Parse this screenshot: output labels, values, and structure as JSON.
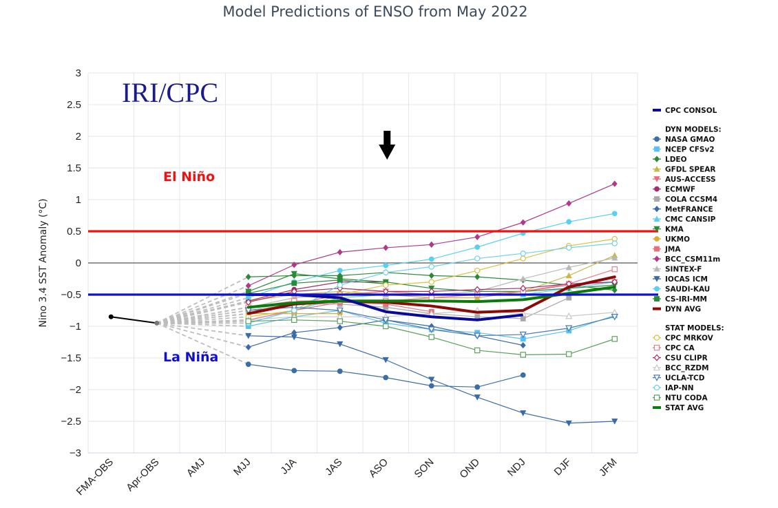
{
  "colors": {
    "el_nino": "#ee1111",
    "la_nina": "#1010cc",
    "brand": "#1a1a8c"
  },
  "chart_data": {
    "type": "line",
    "title": "Model Predictions of ENSO from May 2022",
    "ylabel": "Nino 3.4 SST Anomaly (°C)",
    "brand": "IRI/CPC",
    "annotations": {
      "el_nino": "El Niño",
      "la_nina": "La Niña",
      "arrow_at": "ASO"
    },
    "thresholds": [
      0.5,
      -0.5
    ],
    "ylim": [
      -3,
      3
    ],
    "yticks": [
      3,
      2.5,
      2,
      1.5,
      1,
      0.5,
      0,
      -0.5,
      -1,
      -1.5,
      -2,
      -2.5,
      -3
    ],
    "ytick_labels": [
      "3",
      "2.5",
      "2",
      "1.5",
      "1",
      "0.5",
      "0",
      "−0.5",
      "−1",
      "−1.5",
      "−2",
      "−2.5",
      "−3"
    ],
    "categories": [
      "FMA-OBS",
      "Apr-OBS",
      "AMJ",
      "MJJ",
      "JJA",
      "JAS",
      "ASO",
      "SON",
      "OND",
      "NDJ",
      "DJF",
      "JFM"
    ],
    "observed": {
      "values": [
        -0.85,
        -0.95,
        null,
        null,
        null,
        null,
        null,
        null,
        null,
        null,
        null,
        null
      ]
    },
    "legend": {
      "consol_label": "CPC CONSOL",
      "dyn_header": "DYN MODELS:",
      "stat_header": "STAT MODELS:"
    },
    "series": [
      {
        "name": "CPC CONSOL",
        "group": "consol",
        "color": "#0a0a9a",
        "marker": "none",
        "width": 4,
        "values": [
          null,
          null,
          null,
          -0.5,
          -0.5,
          -0.55,
          -0.77,
          -0.85,
          -0.9,
          -0.82,
          null,
          null
        ]
      },
      {
        "name": "NASA GMAO",
        "group": "dyn",
        "color": "#3b6ea5",
        "marker": "circle",
        "values": [
          null,
          null,
          null,
          -1.6,
          -1.7,
          -1.71,
          -1.81,
          -1.94,
          -1.96,
          -1.77,
          null,
          null
        ]
      },
      {
        "name": "NCEP CFSv2",
        "group": "dyn",
        "color": "#5bc0f0",
        "marker": "square",
        "values": [
          null,
          null,
          null,
          -1.0,
          -0.85,
          -0.75,
          -0.95,
          -1.05,
          -1.1,
          -1.2,
          -1.07,
          -0.83
        ]
      },
      {
        "name": "LDEO",
        "group": "dyn",
        "color": "#2a8a3a",
        "marker": "diamond",
        "values": [
          null,
          null,
          null,
          -0.22,
          -0.2,
          -0.2,
          -0.15,
          -0.2,
          -0.22,
          -0.27,
          -0.35,
          -0.43
        ]
      },
      {
        "name": "GFDL SPEAR",
        "group": "dyn",
        "color": "#c8b84a",
        "marker": "triangle",
        "values": [
          null,
          null,
          null,
          -0.6,
          -0.5,
          -0.45,
          -0.5,
          -0.55,
          -0.55,
          -0.45,
          -0.2,
          0.12
        ]
      },
      {
        "name": "AUS-ACCESS",
        "group": "dyn",
        "color": "#e86e7a",
        "marker": "tridown",
        "values": [
          null,
          null,
          null,
          -0.8,
          -0.65,
          -0.5,
          -0.45,
          -0.5,
          -0.5,
          -0.45,
          -0.35,
          -0.3
        ]
      },
      {
        "name": "ECMWF",
        "group": "dyn",
        "color": "#a0306a",
        "marker": "circle",
        "values": [
          null,
          null,
          null,
          -0.6,
          -0.42,
          -0.3,
          -0.3,
          null,
          null,
          null,
          null,
          null
        ]
      },
      {
        "name": "COLA CCSM4",
        "group": "dyn",
        "color": "#a8a8a8",
        "marker": "square",
        "values": [
          null,
          null,
          null,
          -0.75,
          -0.65,
          -0.65,
          -0.7,
          -0.8,
          -0.85,
          -0.88,
          -0.55,
          null
        ]
      },
      {
        "name": "MetFRANCE",
        "group": "dyn",
        "color": "#3a6aaa",
        "marker": "diamond",
        "values": [
          null,
          null,
          null,
          -1.33,
          -1.1,
          -1.02,
          -0.9,
          -1.0,
          -1.15,
          -1.3,
          null,
          null
        ]
      },
      {
        "name": "CMC CANSIP",
        "group": "dyn",
        "color": "#5ad0f0",
        "marker": "triangle",
        "values": [
          null,
          null,
          null,
          -0.95,
          -0.75,
          -0.55,
          -0.5,
          -0.5,
          -0.5,
          -0.5,
          -0.4,
          -0.3
        ]
      },
      {
        "name": "KMA",
        "group": "dyn",
        "color": "#2a8a3a",
        "marker": "tridown",
        "values": [
          null,
          null,
          null,
          -0.45,
          -0.17,
          -0.25,
          -0.3,
          -0.4,
          -0.45,
          -0.45,
          -0.4,
          -0.35
        ]
      },
      {
        "name": "UKMO",
        "group": "dyn",
        "color": "#d8b030",
        "marker": "circle",
        "values": [
          null,
          null,
          null,
          -0.8,
          -0.8,
          -0.8,
          null,
          null,
          null,
          null,
          null,
          null
        ]
      },
      {
        "name": "JMA",
        "group": "dyn",
        "color": "#e86e7a",
        "marker": "square",
        "values": [
          null,
          null,
          null,
          -0.9,
          -0.75,
          -0.62,
          -0.65,
          -0.77,
          null,
          null,
          null,
          null
        ]
      },
      {
        "name": "BCC_CSM11m",
        "group": "dyn",
        "color": "#b03a88",
        "marker": "diamond",
        "values": [
          null,
          null,
          null,
          -0.36,
          -0.03,
          0.17,
          0.24,
          0.29,
          0.41,
          0.64,
          0.94,
          1.25
        ]
      },
      {
        "name": "SINTEX-F",
        "group": "dyn",
        "color": "#b8b8b8",
        "marker": "triangle",
        "values": [
          null,
          null,
          null,
          -0.7,
          -0.55,
          -0.5,
          -0.5,
          -0.5,
          -0.45,
          -0.25,
          -0.07,
          0.08
        ]
      },
      {
        "name": "IOCAS ICM",
        "group": "dyn",
        "color": "#3a6aaa",
        "marker": "tridown",
        "values": [
          null,
          null,
          null,
          -1.15,
          -1.17,
          -1.28,
          -1.53,
          -1.84,
          -2.12,
          -2.37,
          -2.53,
          -2.5
        ]
      },
      {
        "name": "SAUDI-KAU",
        "group": "dyn",
        "color": "#5ad0f0",
        "marker": "circle",
        "values": [
          null,
          null,
          null,
          -0.55,
          -0.3,
          -0.12,
          -0.04,
          0.06,
          0.25,
          0.47,
          0.65,
          0.78
        ]
      },
      {
        "name": "CS-IRI-MM",
        "group": "dyn",
        "color": "#2a8a3a",
        "marker": "square",
        "values": [
          null,
          null,
          null,
          -0.48,
          -0.32,
          -0.27,
          -0.33,
          null,
          null,
          null,
          null,
          null
        ]
      },
      {
        "name": "DYN AVG",
        "group": "dyn",
        "color": "#8a0a0a",
        "marker": "none",
        "width": 4,
        "values": [
          null,
          null,
          null,
          -0.8,
          -0.65,
          -0.6,
          -0.62,
          -0.68,
          -0.78,
          -0.75,
          -0.38,
          -0.22
        ]
      },
      {
        "name": "CPC MRKOV",
        "group": "stat",
        "color": "#d8c040",
        "marker": "ocircle",
        "values": [
          null,
          null,
          null,
          -0.85,
          -0.75,
          -0.5,
          -0.35,
          -0.3,
          -0.12,
          0.07,
          0.27,
          0.38
        ]
      },
      {
        "name": "CPC CA",
        "group": "stat",
        "color": "#e87e8a",
        "marker": "osquare",
        "values": [
          null,
          null,
          null,
          -0.7,
          -0.6,
          -0.6,
          -0.6,
          -0.55,
          -0.5,
          -0.45,
          -0.33,
          -0.1
        ]
      },
      {
        "name": "CSU CLIPR",
        "group": "stat",
        "color": "#a0306a",
        "marker": "odiamond",
        "values": [
          null,
          null,
          null,
          -0.62,
          -0.45,
          -0.4,
          -0.45,
          -0.45,
          -0.42,
          -0.4,
          -0.33,
          -0.3
        ]
      },
      {
        "name": "BCC_RZDM",
        "group": "stat",
        "color": "#c8c8c8",
        "marker": "otriangle",
        "values": [
          null,
          null,
          null,
          -0.9,
          -0.85,
          -0.85,
          -0.85,
          -0.8,
          -0.75,
          -0.8,
          -0.84,
          -0.78
        ]
      },
      {
        "name": "UCLA-TCD",
        "group": "stat",
        "color": "#4a7ab5",
        "marker": "otridown",
        "values": [
          null,
          null,
          null,
          -0.75,
          -0.7,
          -0.75,
          -0.9,
          -1.05,
          -1.15,
          -1.13,
          -1.03,
          -0.85
        ]
      },
      {
        "name": "IAP-NN",
        "group": "stat",
        "color": "#6ad0f0",
        "marker": "ocircle",
        "values": [
          null,
          null,
          null,
          -0.95,
          -0.75,
          -0.35,
          -0.15,
          -0.06,
          0.07,
          0.15,
          0.24,
          0.31
        ]
      },
      {
        "name": "NTU CODA",
        "group": "stat",
        "color": "#5aa05a",
        "marker": "osquare",
        "values": [
          null,
          null,
          null,
          -0.92,
          -0.9,
          -0.92,
          -1.0,
          -1.17,
          -1.38,
          -1.45,
          -1.44,
          -1.2
        ]
      },
      {
        "name": "STAT AVG",
        "group": "stat",
        "color": "#0a7a0a",
        "marker": "none",
        "width": 4,
        "values": [
          null,
          null,
          null,
          -0.7,
          -0.63,
          -0.6,
          -0.6,
          -0.6,
          -0.61,
          -0.58,
          -0.48,
          -0.38
        ]
      }
    ]
  }
}
